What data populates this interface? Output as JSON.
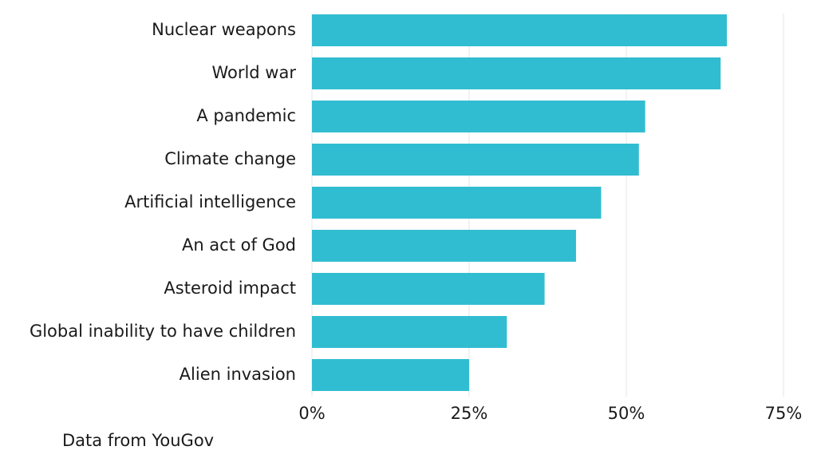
{
  "chart_data": {
    "type": "bar",
    "orientation": "horizontal",
    "categories": [
      "Nuclear weapons",
      "World war",
      "A pandemic",
      "Climate change",
      "Artificial intelligence",
      "An act of God",
      "Asteroid impact",
      "Global inability to have children",
      "Alien invasion"
    ],
    "values": [
      66,
      65,
      53,
      52,
      46,
      42,
      37,
      31,
      25
    ],
    "color": "#31bdd1",
    "xlim": [
      0,
      75
    ],
    "xticks": [
      {
        "value": 0,
        "label": "0%"
      },
      {
        "value": 25,
        "label": "25%"
      },
      {
        "value": 50,
        "label": "50%"
      },
      {
        "value": 75,
        "label": "75%"
      }
    ],
    "grid": true,
    "source": "Data from YouGov"
  }
}
